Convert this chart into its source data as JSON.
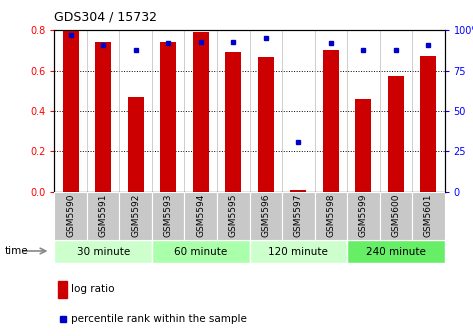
{
  "title": "GDS304 / 15732",
  "samples": [
    "GSM5590",
    "GSM5591",
    "GSM5592",
    "GSM5593",
    "GSM5594",
    "GSM5595",
    "GSM5596",
    "GSM5597",
    "GSM5598",
    "GSM5599",
    "GSM5600",
    "GSM5601"
  ],
  "log_ratio": [
    0.8,
    0.74,
    0.47,
    0.74,
    0.79,
    0.69,
    0.665,
    0.01,
    0.7,
    0.46,
    0.575,
    0.67
  ],
  "percentile": [
    97,
    91,
    88,
    92,
    93,
    93,
    95,
    31,
    92,
    88,
    88,
    91
  ],
  "groups": [
    {
      "label": "30 minute",
      "start": 0,
      "end": 3,
      "color": "#ccffcc"
    },
    {
      "label": "60 minute",
      "start": 3,
      "end": 6,
      "color": "#aaffaa"
    },
    {
      "label": "120 minute",
      "start": 6,
      "end": 9,
      "color": "#ccffcc"
    },
    {
      "label": "240 minute",
      "start": 9,
      "end": 12,
      "color": "#66ee66"
    }
  ],
  "bar_color": "#cc0000",
  "dot_color": "#0000cc",
  "ylim_left": [
    0,
    0.8
  ],
  "ylim_right": [
    0,
    100
  ],
  "yticks_left": [
    0,
    0.2,
    0.4,
    0.6,
    0.8
  ],
  "yticks_right": [
    0,
    25,
    50,
    75,
    100
  ],
  "ytick_labels_right": [
    "0",
    "25",
    "50",
    "75",
    "100%"
  ],
  "grid_color": "#000000",
  "bar_width": 0.5,
  "legend_log_ratio": "log ratio",
  "legend_percentile": "percentile rank within the sample",
  "time_label": "time",
  "xtick_bg": "#c8c8c8"
}
